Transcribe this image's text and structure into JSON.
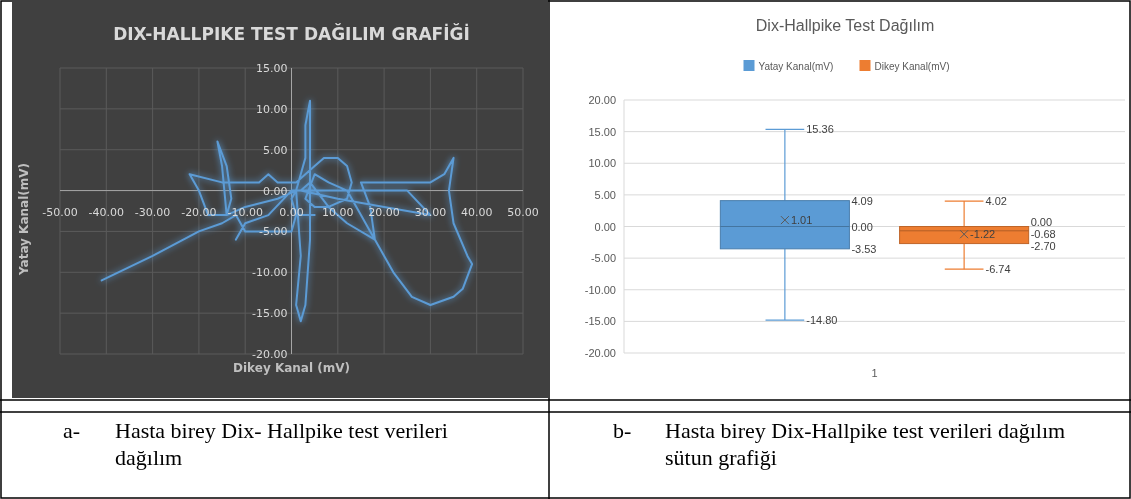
{
  "chart_data": [
    {
      "type": "line",
      "title": "DIX-HALLPIKE TEST DAĞILIM GRAFİĞİ",
      "xlabel": "Dikey Kanal (mV)",
      "ylabel": "Yatay Kanal(mV)",
      "grid": true,
      "legend": false,
      "color": "#5b9bd5",
      "xlim": [
        -50,
        50
      ],
      "xticks": [
        {
          "value": -50,
          "label": "-50.00"
        },
        {
          "value": -40,
          "label": "-40.00"
        },
        {
          "value": -30,
          "label": "-30.00"
        },
        {
          "value": -20,
          "label": "-20.00"
        },
        {
          "value": -10,
          "label": "-10.00"
        },
        {
          "value": 0,
          "label": "0.00"
        },
        {
          "value": 10,
          "label": "10.00"
        },
        {
          "value": 20,
          "label": "20.00"
        },
        {
          "value": 30,
          "label": "30.00"
        },
        {
          "value": 40,
          "label": "40.00"
        },
        {
          "value": 50,
          "label": "50.00"
        }
      ],
      "ylim": [
        -20,
        15
      ],
      "yticks": [
        {
          "value": -20,
          "label": "-20.00"
        },
        {
          "value": -15,
          "label": "-15.00"
        },
        {
          "value": -10,
          "label": "-10.00"
        },
        {
          "value": -5,
          "label": "-5.00"
        },
        {
          "value": 0,
          "label": "0.00"
        },
        {
          "value": 5,
          "label": "5.00"
        },
        {
          "value": 10,
          "label": "10.00"
        },
        {
          "value": 15,
          "label": "15.00"
        }
      ],
      "x": [
        -41,
        -30,
        -20,
        -15,
        -12,
        -10,
        -5,
        0,
        1,
        3,
        5,
        1,
        0,
        1,
        2,
        1,
        2,
        3,
        4,
        4,
        4,
        4,
        3,
        3,
        2,
        1,
        -3,
        -10,
        -14,
        -15,
        -16,
        -14,
        -13,
        -14,
        -18,
        -20,
        -22,
        -15,
        -10,
        -7,
        -5,
        -3,
        -1,
        1,
        3,
        5,
        7,
        10,
        12,
        13,
        12,
        8,
        5,
        3,
        5,
        8,
        12,
        15,
        17,
        18,
        17,
        15,
        17,
        25,
        30,
        33,
        35,
        34,
        35,
        38,
        39,
        37,
        35,
        30,
        26,
        22,
        18,
        12,
        8,
        4,
        2,
        10,
        20,
        30,
        25,
        10,
        0,
        -5,
        -10,
        -12
      ],
      "values": [
        -11,
        -8,
        -5,
        -4,
        -3,
        -5,
        -5,
        -5,
        -3,
        -3,
        -3,
        -3,
        -1,
        0,
        -8,
        -14,
        -16,
        -14,
        -6,
        0,
        5,
        11,
        8,
        4,
        2,
        0,
        -1,
        -2,
        -3,
        3,
        6,
        3,
        -1,
        -3,
        -3,
        0,
        2,
        1,
        1,
        1,
        2,
        1,
        1,
        1,
        2,
        3,
        4,
        4,
        3,
        1,
        -1,
        -2,
        -2,
        -1,
        2,
        1,
        0,
        -3,
        -5,
        -6,
        -2,
        1,
        1,
        1,
        1,
        2,
        4,
        0,
        -4,
        -8,
        -9,
        -12,
        -13,
        -14,
        -13,
        -10,
        -6,
        -4,
        -2,
        1,
        0,
        -1,
        -2,
        -3,
        0,
        0,
        0,
        -3,
        -4,
        -6
      ],
      "annotations": [
        "a- Hasta birey Dix- Hallpike test verileri dağılım"
      ]
    },
    {
      "type": "box",
      "title": "Dix-Hallpike Test Dağılım",
      "categories": [
        "1"
      ],
      "legend": "top",
      "grid": "y",
      "data_labels": true,
      "ylim": [
        -20,
        20
      ],
      "yticks": [
        {
          "value": -20,
          "label": "-20.00"
        },
        {
          "value": -15,
          "label": "-15.00"
        },
        {
          "value": -10,
          "label": "-10.00"
        },
        {
          "value": -5,
          "label": "-5.00"
        },
        {
          "value": 0,
          "label": "0.00"
        },
        {
          "value": 5,
          "label": "5.00"
        },
        {
          "value": 10,
          "label": "10.00"
        },
        {
          "value": 15,
          "label": "15.00"
        },
        {
          "value": 20,
          "label": "20.00"
        }
      ],
      "series": [
        {
          "name": "Yatay Kanal(mV)",
          "color": "#5b9bd5",
          "boxes": [
            {
              "low": -14.8,
              "q1": -3.53,
              "median": 0.0,
              "q3": 4.09,
              "high": 15.36,
              "mean": 1.01
            }
          ]
        },
        {
          "name": "Dikey Kanal(mV)",
          "color": "#ed7d31",
          "boxes": [
            {
              "low": -6.74,
              "q1": -2.7,
              "median": -0.68,
              "q3": 0.0,
              "high": 4.02,
              "mean": -1.22
            }
          ]
        }
      ],
      "annotations": [
        "b- Hasta birey Dix-Hallpike test verileri dağılım sütun grafiği",
        "15.36",
        "-14.80",
        "4.09",
        "-3.53",
        "0.00",
        "1.01",
        "4.02",
        "-6.74",
        "0.00",
        "-2.70",
        "-0.68",
        "-1.22"
      ]
    }
  ]
}
